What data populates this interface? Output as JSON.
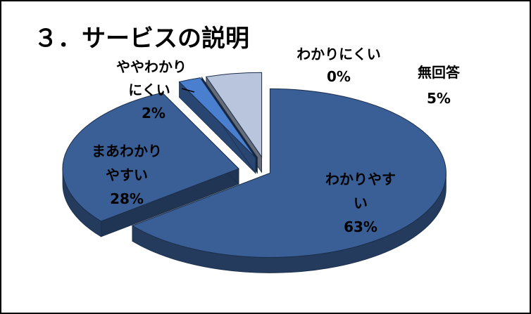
{
  "chart_data": {
    "type": "pie",
    "title": "３．サービスの説明",
    "categories": [
      "わかりやすい",
      "まあわかりやすい",
      "ややわかりにくい",
      "わかりにくい",
      "無回答"
    ],
    "values": [
      63,
      28,
      2,
      0,
      5
    ],
    "value_labels": [
      "63%",
      "28%",
      "2%",
      "0%",
      "5%"
    ],
    "label_lines": [
      [
        "わかりやす",
        "い",
        "63%"
      ],
      [
        "まあわかり",
        "やすい",
        "28%"
      ],
      [
        "ややわかり",
        "にくい",
        "2%"
      ],
      [
        "わかりにくい",
        "0%"
      ],
      [
        "無回答",
        "5%"
      ]
    ],
    "colors": [
      "#3a5f97",
      "#3a5f97",
      "#4a7fcf",
      "#1f3f6d",
      "#b9c5dc"
    ],
    "style": "3d-exploded"
  }
}
